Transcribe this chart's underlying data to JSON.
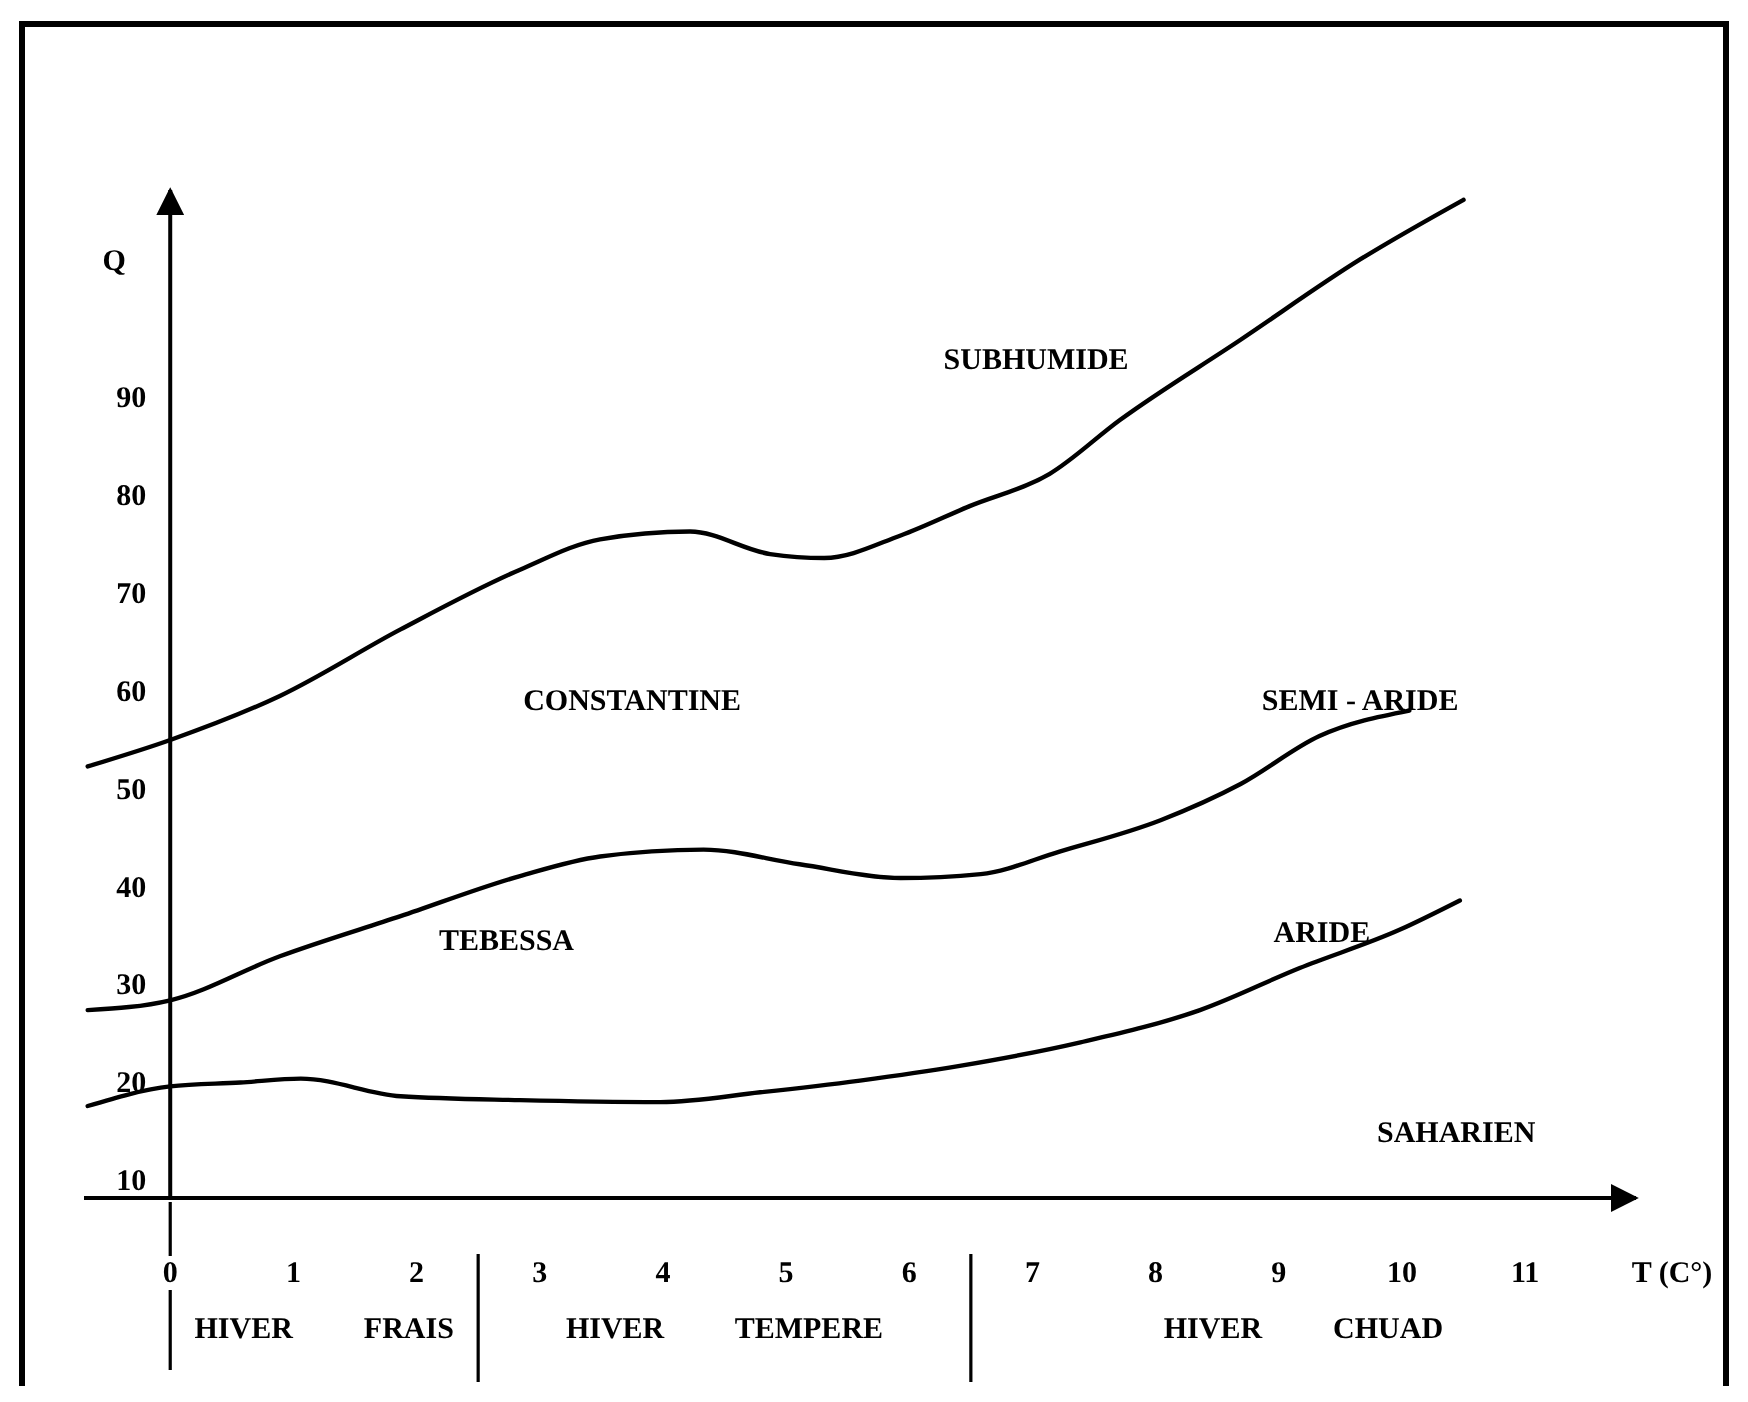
{
  "chart_data": {
    "type": "line",
    "xlabel": "T (C°)",
    "ylabel": "Q",
    "xlim": [
      -0.7,
      11.9
    ],
    "ylim": [
      9,
      112
    ],
    "xticks": [
      0,
      1,
      2,
      3,
      4,
      5,
      6,
      7,
      8,
      9,
      10,
      11
    ],
    "yticks": [
      10,
      20,
      30,
      40,
      50,
      60,
      70,
      80,
      90
    ],
    "grid": false,
    "marker": "none",
    "line_style": "solid",
    "series": [
      {
        "color": "#000000",
        "x": [
          -0.67,
          0,
          0.89,
          1.87,
          2.84,
          3.49,
          4.22,
          4.87,
          5.31,
          5.93,
          6.49,
          7.14,
          7.71,
          8.69,
          9.66,
          10.5
        ],
        "values": [
          53.1,
          55.8,
          60.3,
          67.1,
          73.2,
          76.3,
          77.1,
          74.8,
          74.4,
          76.7,
          79.7,
          83,
          88.5,
          96.7,
          104.9,
          111
        ]
      },
      {
        "color": "#000000",
        "x": [
          -0.67,
          0,
          0.89,
          1.87,
          2.84,
          3.49,
          4.33,
          5.11,
          5.93,
          6.58,
          7.22,
          8.04,
          8.69,
          9.33,
          10.06
        ],
        "values": [
          28.2,
          29.2,
          33.7,
          37.8,
          41.9,
          43.9,
          44.6,
          43.1,
          41.7,
          42.1,
          44.4,
          47.6,
          51.3,
          56.2,
          58.8
        ]
      },
      {
        "color": "#000000",
        "x": [
          -0.67,
          0,
          0.57,
          1.06,
          1.87,
          2.84,
          3.98,
          4.79,
          5.6,
          6.41,
          7.39,
          8.36,
          9.17,
          9.98,
          10.47
        ],
        "values": [
          18.4,
          20.4,
          20.8,
          21.2,
          19.4,
          19,
          18.8,
          19.8,
          21,
          22.5,
          24.9,
          28.2,
          32.5,
          36.4,
          39.4
        ]
      }
    ],
    "annotations": [
      "SUBHUMIDE",
      "CONSTANTINE",
      "SEMI - ARIDE",
      "TEBESSA",
      "ARIDE",
      "SAHARIEN",
      "HIVER  FRAIS",
      "HIVER  TEMPERE",
      "HIVER  CHUAD"
    ]
  }
}
